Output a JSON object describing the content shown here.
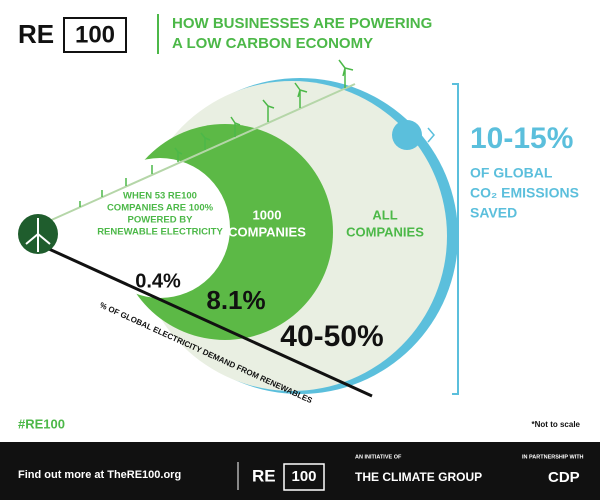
{
  "header": {
    "logo_left": "RE",
    "logo_right": "100",
    "title_lines": [
      "HOW BUSINESSES ARE POWERING",
      "A LOW CARBON ECONOMY"
    ]
  },
  "circles": [
    {
      "label_lines": [
        "WHEN 53 RE100",
        "COMPANIES ARE 100%",
        "POWERED BY",
        "RENEWABLE ELECTRICITY"
      ],
      "value": "0.4%"
    },
    {
      "label_lines": [
        "1000",
        "COMPANIES"
      ],
      "value": "8.1%"
    },
    {
      "label_lines": [
        "ALL",
        "COMPANIES"
      ],
      "value": "40-50%"
    }
  ],
  "axis_label": "% OF GLOBAL ELECTRICITY DEMAND FROM RENEWABLES",
  "outcome": {
    "value": "10-15%",
    "lines": [
      "OF GLOBAL",
      "CO₂ EMISSIONS",
      "SAVED"
    ]
  },
  "hashtag": "#RE100",
  "note": "*Not to scale",
  "footer": {
    "link_text": "Find out more at TheRE100.org",
    "logo_left": "RE",
    "logo_right": "100",
    "initiative_caption": "AN INITIATIVE OF",
    "initiative": "THE CLIMATE GROUP",
    "partner_caption": "IN PARTNERSHIP WITH",
    "partner": "CDP"
  }
}
